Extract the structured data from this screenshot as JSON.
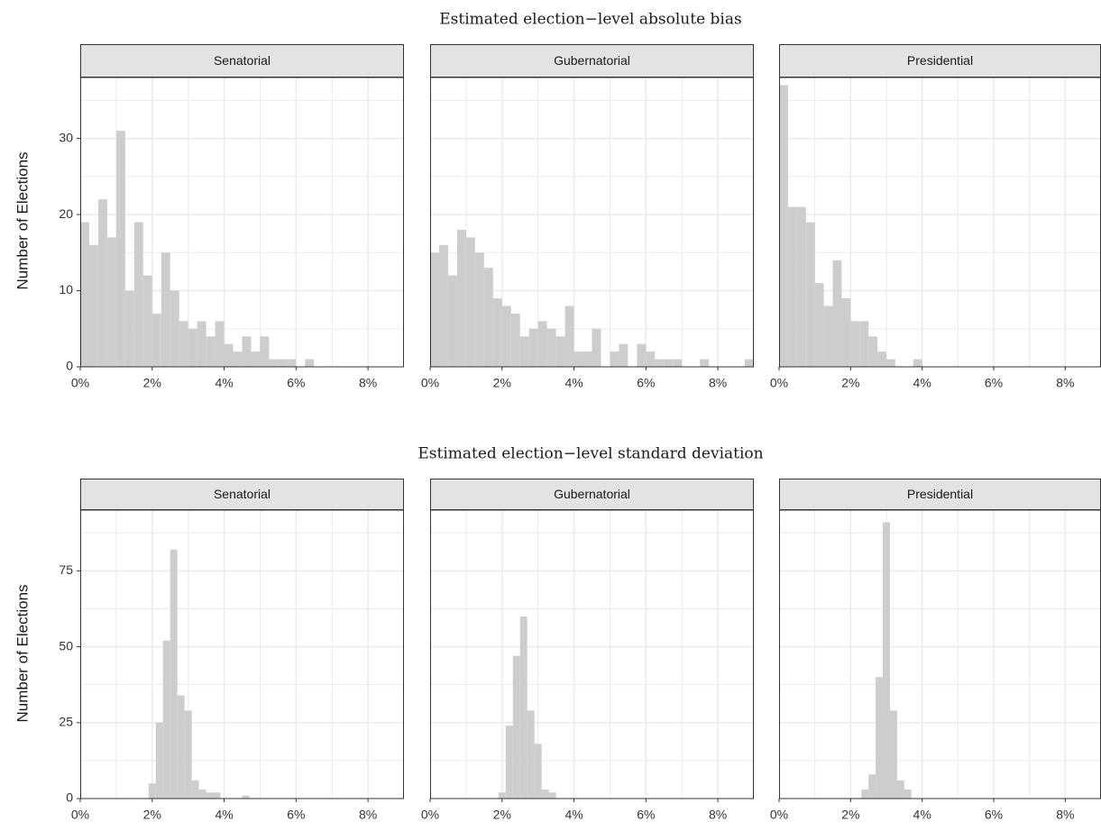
{
  "colors": {
    "bar": "#cdcdcf",
    "grid": "#ebebeb",
    "strip_fill": "#e3e3e5",
    "frame": "#333333",
    "background": "#ffffff"
  },
  "chart_data": [
    {
      "type": "bar",
      "title": "Estimated election−level absolute bias",
      "ylabel": "Number of Elections",
      "xlim": [
        0,
        9.0
      ],
      "ylim": [
        0,
        38
      ],
      "x_ticks": [
        0,
        2,
        4,
        6,
        8
      ],
      "x_tick_labels": [
        "0%",
        "2%",
        "4%",
        "6%",
        "8%"
      ],
      "y_ticks": [
        0,
        10,
        20,
        30
      ],
      "y_tick_labels": [
        "0",
        "10",
        "20",
        "30"
      ],
      "bin_width": 0.25,
      "first_bin_start": 0.0,
      "grid": true,
      "panels": [
        {
          "name": "Senatorial",
          "values": [
            19,
            16,
            22,
            17,
            31,
            10,
            19,
            12,
            7,
            15,
            10,
            6,
            5,
            6,
            4,
            6,
            3,
            2,
            4,
            2,
            4,
            1,
            1,
            1,
            0,
            1,
            0,
            0,
            0,
            0,
            0,
            0,
            0,
            0,
            0,
            0
          ]
        },
        {
          "name": "Gubernatorial",
          "values": [
            15,
            16,
            12,
            18,
            17,
            15,
            13,
            9,
            8,
            7,
            4,
            5,
            6,
            5,
            4,
            8,
            2,
            2,
            5,
            0,
            2,
            3,
            0,
            3,
            2,
            1,
            1,
            1,
            0,
            0,
            1,
            0,
            0,
            0,
            0,
            1
          ]
        },
        {
          "name": "Presidential",
          "values": [
            37,
            21,
            21,
            19,
            11,
            8,
            14,
            9,
            6,
            6,
            4,
            2,
            1,
            0,
            0,
            1,
            0,
            0,
            0,
            0,
            0,
            0,
            0,
            0,
            0,
            0,
            0,
            0,
            0,
            0,
            0,
            0,
            0,
            0,
            0,
            0
          ]
        }
      ]
    },
    {
      "type": "bar",
      "title": "Estimated election−level standard deviation",
      "ylabel": "Number of Elections",
      "xlim": [
        0,
        9.0
      ],
      "ylim": [
        0,
        95
      ],
      "x_ticks": [
        0,
        2,
        4,
        6,
        8
      ],
      "x_tick_labels": [
        "0%",
        "2%",
        "4%",
        "6%",
        "8%"
      ],
      "y_ticks": [
        0,
        25,
        50,
        75
      ],
      "y_tick_labels": [
        "0",
        "25",
        "50",
        "75"
      ],
      "bin_width": 0.2,
      "first_bin_start": 1.9,
      "grid": true,
      "panels": [
        {
          "name": "Senatorial",
          "values": [
            5,
            25,
            52,
            82,
            34,
            29,
            6,
            3,
            2,
            2,
            0,
            0,
            0,
            1
          ]
        },
        {
          "name": "Gubernatorial",
          "values": [
            2,
            24,
            47,
            60,
            29,
            18,
            3,
            2
          ]
        },
        {
          "name": "Presidential",
          "values": [
            0,
            0,
            3,
            8,
            40,
            91,
            29,
            6,
            3
          ]
        }
      ]
    }
  ]
}
